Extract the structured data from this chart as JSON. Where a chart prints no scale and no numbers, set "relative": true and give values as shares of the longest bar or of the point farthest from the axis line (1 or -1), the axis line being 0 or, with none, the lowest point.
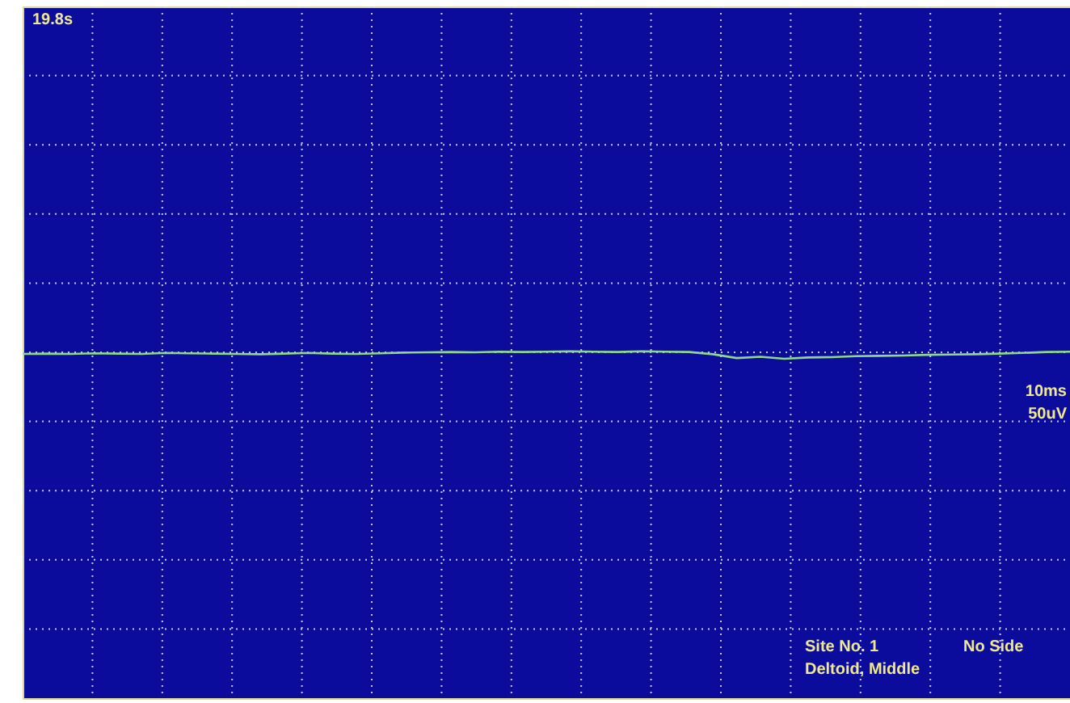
{
  "chart_data": {
    "type": "line",
    "relative": true,
    "grid": true,
    "categories": [
      null,
      null,
      null,
      null,
      null,
      null,
      null,
      null,
      null,
      null,
      null,
      null,
      null,
      null,
      null,
      null,
      null,
      null,
      null,
      null,
      null,
      null,
      null,
      null,
      null,
      null,
      null,
      null,
      null,
      null,
      null,
      null,
      null,
      null,
      null,
      null,
      null,
      null,
      null,
      null,
      null,
      null,
      null,
      null,
      null
    ],
    "series": [
      {
        "color": "#8fd88a",
        "values": [
          -0.25,
          -0.2,
          -0.25,
          -0.15,
          -0.2,
          -0.25,
          -0.1,
          -0.15,
          -0.2,
          -0.25,
          -0.3,
          -0.2,
          -0.1,
          -0.2,
          -0.25,
          -0.15,
          -0.05,
          0,
          0.05,
          0,
          0.1,
          0.05,
          0.1,
          0.15,
          0.1,
          0.05,
          0.15,
          0.1,
          0.05,
          -0.3,
          -0.9,
          -0.7,
          -1,
          -0.8,
          -0.75,
          -0.6,
          -0.55,
          -0.5,
          -0.4,
          -0.35,
          -0.3,
          -0.2,
          -0.1,
          0.05,
          0.1
        ]
      }
    ],
    "annotations": [
      "19.8s",
      "10ms",
      "50uV",
      "Site No. 1",
      "No Side",
      "Deltoid, Middle"
    ]
  }
}
